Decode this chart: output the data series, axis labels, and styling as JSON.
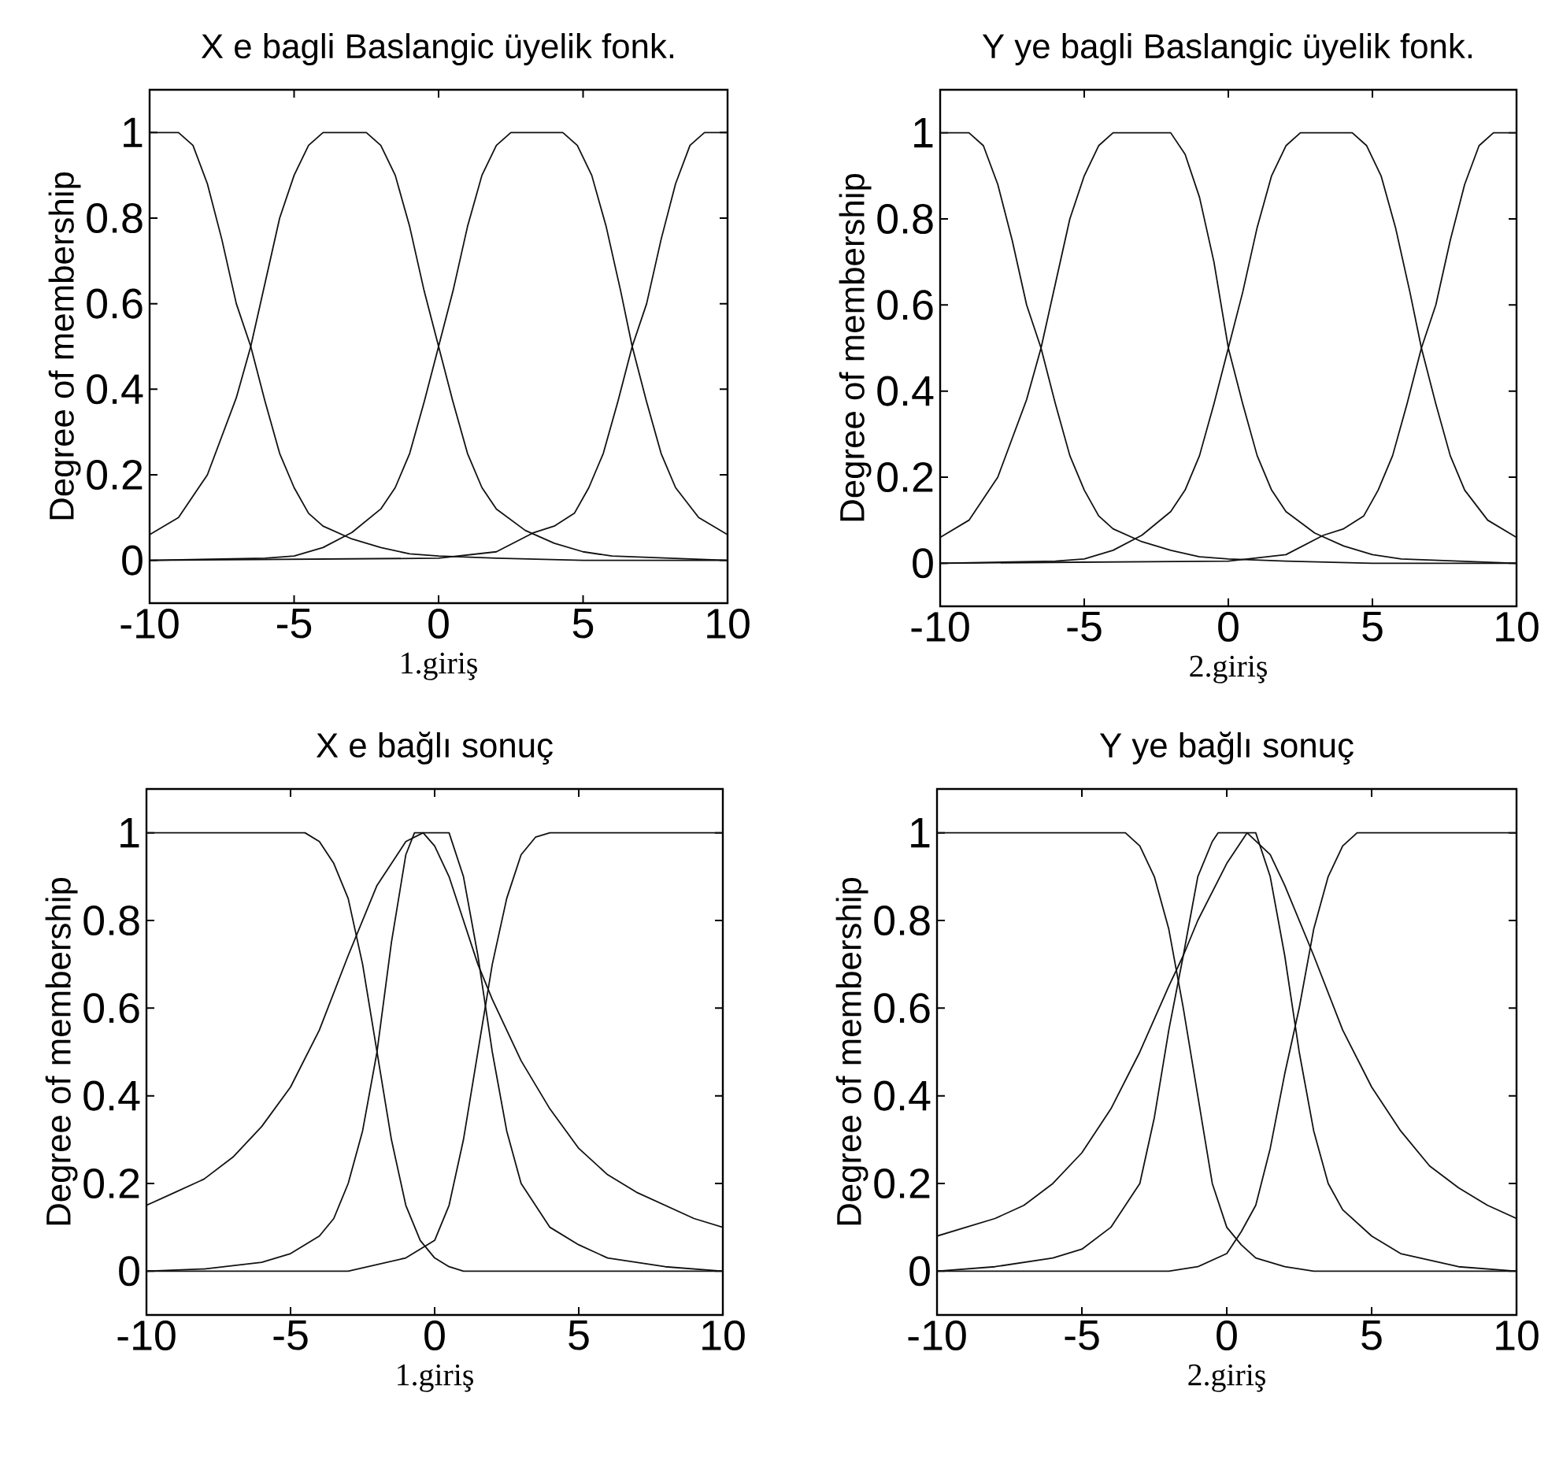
{
  "chart_data": [
    {
      "type": "line",
      "title": "X e bagli Baslangic üyelik fonk.",
      "xlabel": "1.giriş",
      "ylabel": "Degree of membership",
      "xlim": [
        -10,
        10
      ],
      "ylim": [
        -0.1,
        1.1
      ],
      "xticks": [
        -10,
        -5,
        0,
        5,
        10
      ],
      "yticks": [
        0,
        0.2,
        0.4,
        0.6,
        0.8,
        1
      ],
      "grid": false,
      "series": [
        {
          "color": "#111111",
          "x": [
            -10,
            -9,
            -8.5,
            -8,
            -7.5,
            -7,
            -6.5,
            -6,
            -5.5,
            -5,
            -4.5,
            -4,
            -3,
            -2,
            -1,
            0,
            2,
            5,
            10
          ],
          "values": [
            1,
            1,
            0.97,
            0.88,
            0.75,
            0.6,
            0.5,
            0.37,
            0.25,
            0.17,
            0.11,
            0.08,
            0.05,
            0.03,
            0.015,
            0.01,
            0.005,
            0,
            0
          ]
        },
        {
          "color": "#111111",
          "x": [
            -10,
            -9,
            -8,
            -7,
            -6.5,
            -6,
            -5.5,
            -5,
            -4.5,
            -4,
            -2.5,
            -2,
            -1.5,
            -1,
            -0.5,
            0,
            0.5,
            1,
            1.5,
            2,
            3,
            4,
            5,
            6,
            8,
            10
          ],
          "values": [
            0.06,
            0.1,
            0.2,
            0.38,
            0.5,
            0.65,
            0.8,
            0.9,
            0.97,
            1,
            1,
            0.97,
            0.9,
            0.78,
            0.63,
            0.5,
            0.37,
            0.25,
            0.17,
            0.12,
            0.07,
            0.04,
            0.02,
            0.01,
            0.005,
            0
          ]
        },
        {
          "color": "#111111",
          "x": [
            -10,
            -6,
            -5,
            -4,
            -3,
            -2,
            -1.5,
            -1,
            -0.5,
            0,
            0.5,
            1,
            1.5,
            2,
            2.5,
            4.3,
            4.8,
            5.3,
            5.8,
            6.3,
            6.7,
            7.2,
            7.7,
            8.2,
            9,
            10
          ],
          "values": [
            0,
            0.005,
            0.01,
            0.03,
            0.065,
            0.12,
            0.17,
            0.25,
            0.37,
            0.5,
            0.63,
            0.78,
            0.9,
            0.97,
            1,
            1,
            0.97,
            0.9,
            0.78,
            0.63,
            0.5,
            0.37,
            0.25,
            0.17,
            0.1,
            0.06
          ]
        },
        {
          "color": "#111111",
          "x": [
            -10,
            0,
            2,
            3.3,
            4,
            4.7,
            5.2,
            5.7,
            6.2,
            6.7,
            7.2,
            7.7,
            8.2,
            8.7,
            9.2,
            10
          ],
          "values": [
            0,
            0.005,
            0.02,
            0.065,
            0.08,
            0.11,
            0.17,
            0.25,
            0.37,
            0.5,
            0.6,
            0.75,
            0.88,
            0.97,
            1,
            1
          ]
        }
      ]
    },
    {
      "type": "line",
      "title": "Y ye bagli Baslangic üyelik fonk.",
      "xlabel": "2.giriş",
      "ylabel": "Degree of membership",
      "xlim": [
        -10,
        10
      ],
      "ylim": [
        -0.1,
        1.1
      ],
      "xticks": [
        -10,
        -5,
        0,
        5,
        10
      ],
      "yticks": [
        0,
        0.2,
        0.4,
        0.6,
        0.8,
        1
      ],
      "grid": false,
      "series": [
        {
          "color": "#111111",
          "x": [
            -10,
            -9,
            -8.5,
            -8,
            -7.5,
            -7,
            -6.5,
            -6,
            -5.5,
            -5,
            -4.5,
            -4,
            -3,
            -2,
            -1,
            0,
            2,
            5,
            10
          ],
          "values": [
            1,
            1,
            0.97,
            0.88,
            0.75,
            0.6,
            0.5,
            0.37,
            0.25,
            0.17,
            0.11,
            0.08,
            0.05,
            0.03,
            0.015,
            0.01,
            0.005,
            0,
            0
          ]
        },
        {
          "color": "#111111",
          "x": [
            -10,
            -9,
            -8,
            -7,
            -6.5,
            -6,
            -5.5,
            -5,
            -4.5,
            -4,
            -2,
            -1.5,
            -1,
            -0.5,
            0,
            0.5,
            1,
            1.5,
            2,
            3,
            4,
            5,
            6,
            8,
            10
          ],
          "values": [
            0.06,
            0.1,
            0.2,
            0.38,
            0.5,
            0.65,
            0.8,
            0.9,
            0.97,
            1,
            1,
            0.95,
            0.85,
            0.7,
            0.5,
            0.37,
            0.25,
            0.17,
            0.12,
            0.07,
            0.04,
            0.02,
            0.01,
            0.005,
            0
          ]
        },
        {
          "color": "#111111",
          "x": [
            -10,
            -6,
            -5,
            -4,
            -3,
            -2,
            -1.5,
            -1,
            -0.5,
            0,
            0.5,
            1,
            1.5,
            2,
            2.5,
            4.3,
            4.8,
            5.3,
            5.8,
            6.3,
            6.7,
            7.2,
            7.7,
            8.2,
            9,
            10
          ],
          "values": [
            0,
            0.005,
            0.01,
            0.03,
            0.065,
            0.12,
            0.17,
            0.25,
            0.37,
            0.5,
            0.63,
            0.78,
            0.9,
            0.97,
            1,
            1,
            0.97,
            0.9,
            0.78,
            0.63,
            0.5,
            0.37,
            0.25,
            0.17,
            0.1,
            0.06
          ]
        },
        {
          "color": "#111111",
          "x": [
            -10,
            0,
            2,
            3.3,
            4,
            4.7,
            5.2,
            5.7,
            6.2,
            6.7,
            7.2,
            7.7,
            8.2,
            8.7,
            9.2,
            10
          ],
          "values": [
            0,
            0.005,
            0.02,
            0.065,
            0.08,
            0.11,
            0.17,
            0.25,
            0.37,
            0.5,
            0.6,
            0.75,
            0.88,
            0.97,
            1,
            1
          ]
        }
      ]
    },
    {
      "type": "line",
      "title": "X e bağlı sonuç",
      "xlabel": "1.giriş",
      "ylabel": "Degree of membership",
      "xlim": [
        -10,
        10
      ],
      "ylim": [
        -0.1,
        1.1
      ],
      "xticks": [
        -10,
        -5,
        0,
        5,
        10
      ],
      "yticks": [
        0,
        0.2,
        0.4,
        0.6,
        0.8,
        1
      ],
      "grid": false,
      "series": [
        {
          "color": "#111111",
          "x": [
            -10,
            -4.5,
            -4,
            -3.5,
            -3,
            -2.5,
            -2,
            -1.5,
            -1,
            -0.5,
            0,
            0.5,
            1,
            10
          ],
          "values": [
            1,
            1,
            0.98,
            0.93,
            0.85,
            0.7,
            0.5,
            0.3,
            0.15,
            0.07,
            0.03,
            0.01,
            0,
            0
          ]
        },
        {
          "color": "#111111",
          "x": [
            -10,
            -8,
            -6,
            -5,
            -4,
            -3.5,
            -3,
            -2.5,
            -2,
            -1.5,
            -1,
            -0.7,
            0.5,
            1,
            1.5,
            2,
            2.5,
            3,
            4,
            5,
            6,
            8,
            10
          ],
          "values": [
            0,
            0.005,
            0.02,
            0.04,
            0.08,
            0.12,
            0.2,
            0.32,
            0.5,
            0.75,
            0.95,
            1,
            1,
            0.9,
            0.72,
            0.5,
            0.32,
            0.2,
            0.1,
            0.06,
            0.03,
            0.01,
            0
          ]
        },
        {
          "color": "#111111",
          "x": [
            -10,
            -9,
            -8,
            -7,
            -6,
            -5,
            -4,
            -3,
            -2,
            -1,
            -0.4,
            0,
            0.5,
            1,
            1.5,
            2,
            3,
            4,
            5,
            6,
            7,
            8,
            9,
            10
          ],
          "values": [
            0.15,
            0.18,
            0.21,
            0.26,
            0.33,
            0.42,
            0.55,
            0.72,
            0.88,
            0.98,
            1,
            0.97,
            0.9,
            0.8,
            0.7,
            0.62,
            0.48,
            0.37,
            0.28,
            0.22,
            0.18,
            0.15,
            0.12,
            0.1
          ]
        },
        {
          "color": "#111111",
          "x": [
            -10,
            -3,
            -1,
            0,
            0.5,
            1,
            1.5,
            2,
            2.5,
            3,
            3.5,
            4,
            10
          ],
          "values": [
            0,
            0,
            0.03,
            0.07,
            0.15,
            0.3,
            0.5,
            0.7,
            0.85,
            0.95,
            0.99,
            1,
            1
          ]
        }
      ]
    },
    {
      "type": "line",
      "title": "Y ye bağlı sonuç",
      "xlabel": "2.giriş",
      "ylabel": "Degree of membership",
      "xlim": [
        -10,
        10
      ],
      "ylim": [
        -0.1,
        1.1
      ],
      "xticks": [
        -10,
        -5,
        0,
        5,
        10
      ],
      "yticks": [
        0,
        0.2,
        0.4,
        0.6,
        0.8,
        1
      ],
      "grid": false,
      "series": [
        {
          "color": "#111111",
          "x": [
            -10,
            -3.5,
            -3,
            -2.5,
            -2,
            -1.5,
            -1,
            -0.5,
            0,
            0.5,
            1,
            2,
            3,
            10
          ],
          "values": [
            1,
            1,
            0.97,
            0.9,
            0.78,
            0.6,
            0.4,
            0.2,
            0.1,
            0.06,
            0.03,
            0.01,
            0,
            0
          ]
        },
        {
          "color": "#111111",
          "x": [
            -10,
            -8,
            -6,
            -5,
            -4,
            -3,
            -2.5,
            -2,
            -1.5,
            -1,
            -0.5,
            -0.3,
            1,
            1.5,
            2,
            2.5,
            3,
            3.5,
            4,
            5,
            6,
            8,
            10
          ],
          "values": [
            0,
            0.01,
            0.03,
            0.05,
            0.1,
            0.2,
            0.35,
            0.55,
            0.72,
            0.9,
            0.98,
            1,
            1,
            0.9,
            0.72,
            0.5,
            0.32,
            0.2,
            0.14,
            0.08,
            0.04,
            0.01,
            0
          ]
        },
        {
          "color": "#111111",
          "x": [
            -10,
            -9,
            -8,
            -7,
            -6,
            -5,
            -4,
            -3,
            -2,
            -1.5,
            -1,
            0,
            0.7,
            1.5,
            2,
            3,
            4,
            5,
            6,
            7,
            8,
            9,
            10
          ],
          "values": [
            0.08,
            0.1,
            0.12,
            0.15,
            0.2,
            0.27,
            0.37,
            0.5,
            0.65,
            0.72,
            0.8,
            0.93,
            1,
            0.95,
            0.88,
            0.72,
            0.55,
            0.42,
            0.32,
            0.24,
            0.19,
            0.15,
            0.12
          ]
        },
        {
          "color": "#111111",
          "x": [
            -10,
            -2,
            -1,
            0,
            0.5,
            1,
            1.5,
            2,
            2.5,
            3,
            3.5,
            4,
            4.5,
            10
          ],
          "values": [
            0,
            0,
            0.01,
            0.04,
            0.09,
            0.15,
            0.28,
            0.45,
            0.6,
            0.78,
            0.9,
            0.97,
            1,
            1
          ]
        }
      ]
    }
  ]
}
